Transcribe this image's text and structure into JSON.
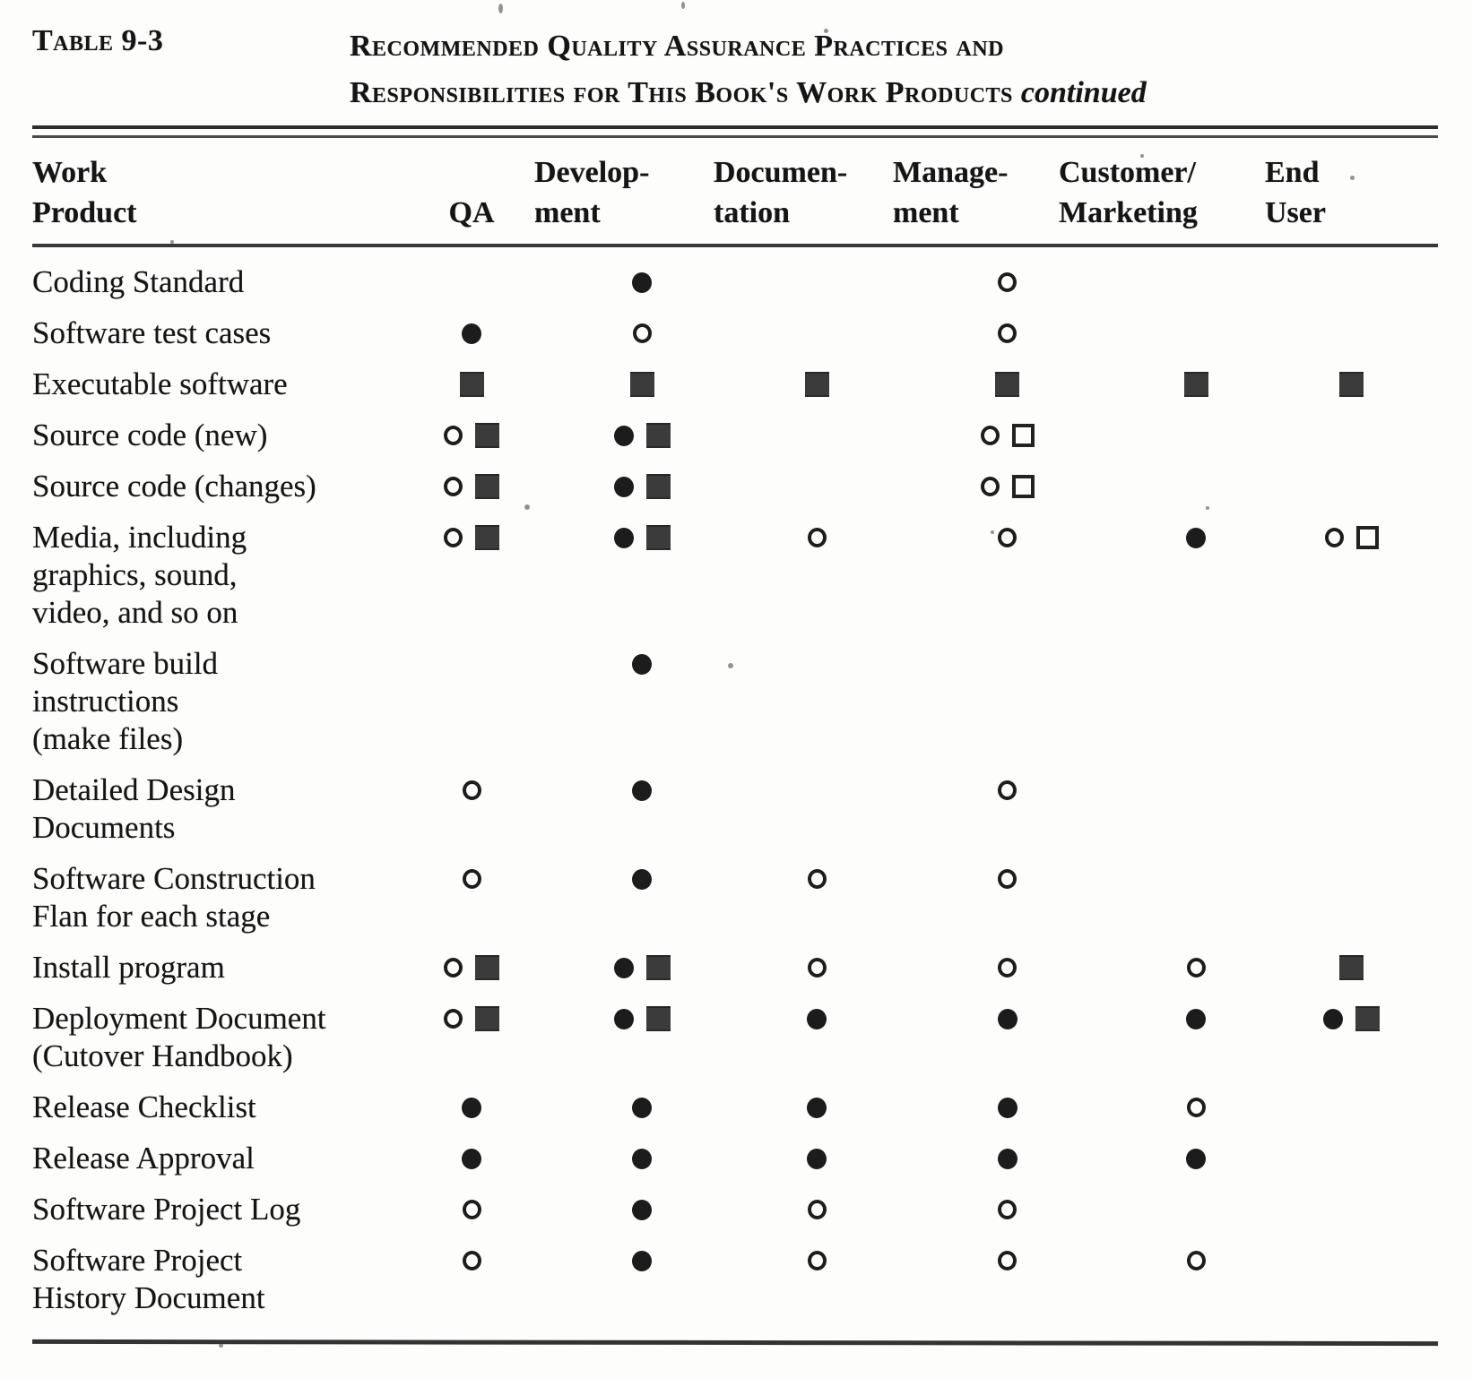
{
  "header": {
    "table_label": "Table 9-3",
    "title_line1": "Recommended Quality Assurance Practices and",
    "title_line2": "Responsibilities for This Book's Work Products",
    "continued_note": "continued"
  },
  "colors": {
    "paper": "#fdfdfc",
    "ink": "#1c1c1c",
    "square_fill": "#3b3b3b"
  },
  "symbols": {
    "filled-circle": "●",
    "open-circle": "○",
    "filled-square": "■",
    "open-square": "□"
  },
  "table": {
    "columns": [
      {
        "id": "work_product",
        "lines": [
          "Work",
          "Product"
        ]
      },
      {
        "id": "qa",
        "lines": [
          "",
          "QA"
        ]
      },
      {
        "id": "development",
        "lines": [
          "Develop-",
          "ment"
        ]
      },
      {
        "id": "documentation",
        "lines": [
          "Documen-",
          "tation"
        ]
      },
      {
        "id": "management",
        "lines": [
          "Manage-",
          "ment"
        ]
      },
      {
        "id": "customer_marketing",
        "lines": [
          "Customer/",
          "Marketing"
        ]
      },
      {
        "id": "end_user",
        "lines": [
          "End",
          "User"
        ]
      }
    ],
    "rows": [
      {
        "label_lines": [
          "Coding Standard"
        ],
        "cells": {
          "development": [
            "filled-circle"
          ],
          "management": [
            "open-circle"
          ]
        }
      },
      {
        "label_lines": [
          "Software test cases"
        ],
        "cells": {
          "qa": [
            "filled-circle"
          ],
          "development": [
            "open-circle"
          ],
          "management": [
            "open-circle"
          ]
        }
      },
      {
        "label_lines": [
          "Executable software"
        ],
        "cells": {
          "qa": [
            "filled-square"
          ],
          "development": [
            "filled-square"
          ],
          "documentation": [
            "filled-square"
          ],
          "management": [
            "filled-square"
          ],
          "customer_marketing": [
            "filled-square"
          ],
          "end_user": [
            "filled-square"
          ]
        }
      },
      {
        "label_lines": [
          "Source code (new)"
        ],
        "cells": {
          "qa": [
            "open-circle",
            "filled-square"
          ],
          "development": [
            "filled-circle",
            "filled-square"
          ],
          "management": [
            "open-circle",
            "open-square"
          ]
        }
      },
      {
        "label_lines": [
          "Source code (changes)"
        ],
        "cells": {
          "qa": [
            "open-circle",
            "filled-square"
          ],
          "development": [
            "filled-circle",
            "filled-square"
          ],
          "management": [
            "open-circle",
            "open-square"
          ]
        }
      },
      {
        "label_lines": [
          "Media, including",
          "graphics, sound,",
          "video, and so on"
        ],
        "cells": {
          "qa": [
            "open-circle",
            "filled-square"
          ],
          "development": [
            "filled-circle",
            "filled-square"
          ],
          "documentation": [
            "open-circle"
          ],
          "management": [
            "open-circle"
          ],
          "customer_marketing": [
            "filled-circle"
          ],
          "end_user": [
            "open-circle",
            "open-square"
          ]
        }
      },
      {
        "label_lines": [
          "Software build",
          "instructions",
          "(make files)"
        ],
        "cells": {
          "development": [
            "filled-circle"
          ]
        }
      },
      {
        "label_lines": [
          "Detailed Design",
          "Documents"
        ],
        "cells": {
          "qa": [
            "open-circle"
          ],
          "development": [
            "filled-circle"
          ],
          "management": [
            "open-circle"
          ]
        }
      },
      {
        "label_lines": [
          "Software Construction",
          "Flan for each stage"
        ],
        "cells": {
          "qa": [
            "open-circle"
          ],
          "development": [
            "filled-circle"
          ],
          "documentation": [
            "open-circle"
          ],
          "management": [
            "open-circle"
          ]
        }
      },
      {
        "label_lines": [
          "Install program"
        ],
        "cells": {
          "qa": [
            "open-circle",
            "filled-square"
          ],
          "development": [
            "filled-circle",
            "filled-square"
          ],
          "documentation": [
            "open-circle"
          ],
          "management": [
            "open-circle"
          ],
          "customer_marketing": [
            "open-circle"
          ],
          "end_user": [
            "filled-square"
          ]
        }
      },
      {
        "label_lines": [
          "Deployment Document",
          "(Cutover Handbook)"
        ],
        "cells": {
          "qa": [
            "open-circle",
            "filled-square"
          ],
          "development": [
            "filled-circle",
            "filled-square"
          ],
          "documentation": [
            "filled-circle"
          ],
          "management": [
            "filled-circle"
          ],
          "customer_marketing": [
            "filled-circle"
          ],
          "end_user": [
            "filled-circle",
            "filled-square"
          ]
        }
      },
      {
        "label_lines": [
          "Release Checklist"
        ],
        "cells": {
          "qa": [
            "filled-circle"
          ],
          "development": [
            "filled-circle"
          ],
          "documentation": [
            "filled-circle"
          ],
          "management": [
            "filled-circle"
          ],
          "customer_marketing": [
            "open-circle"
          ]
        }
      },
      {
        "label_lines": [
          "Release Approval"
        ],
        "cells": {
          "qa": [
            "filled-circle"
          ],
          "development": [
            "filled-circle"
          ],
          "documentation": [
            "filled-circle"
          ],
          "management": [
            "filled-circle"
          ],
          "customer_marketing": [
            "filled-circle"
          ]
        }
      },
      {
        "label_lines": [
          "Software Project Log"
        ],
        "cells": {
          "qa": [
            "open-circle"
          ],
          "development": [
            "filled-circle"
          ],
          "documentation": [
            "open-circle"
          ],
          "management": [
            "open-circle"
          ]
        }
      },
      {
        "label_lines": [
          "Software Project",
          "History Document"
        ],
        "cells": {
          "qa": [
            "open-circle"
          ],
          "development": [
            "filled-circle"
          ],
          "documentation": [
            "open-circle"
          ],
          "management": [
            "open-circle"
          ],
          "customer_marketing": [
            "open-circle"
          ]
        }
      }
    ]
  }
}
